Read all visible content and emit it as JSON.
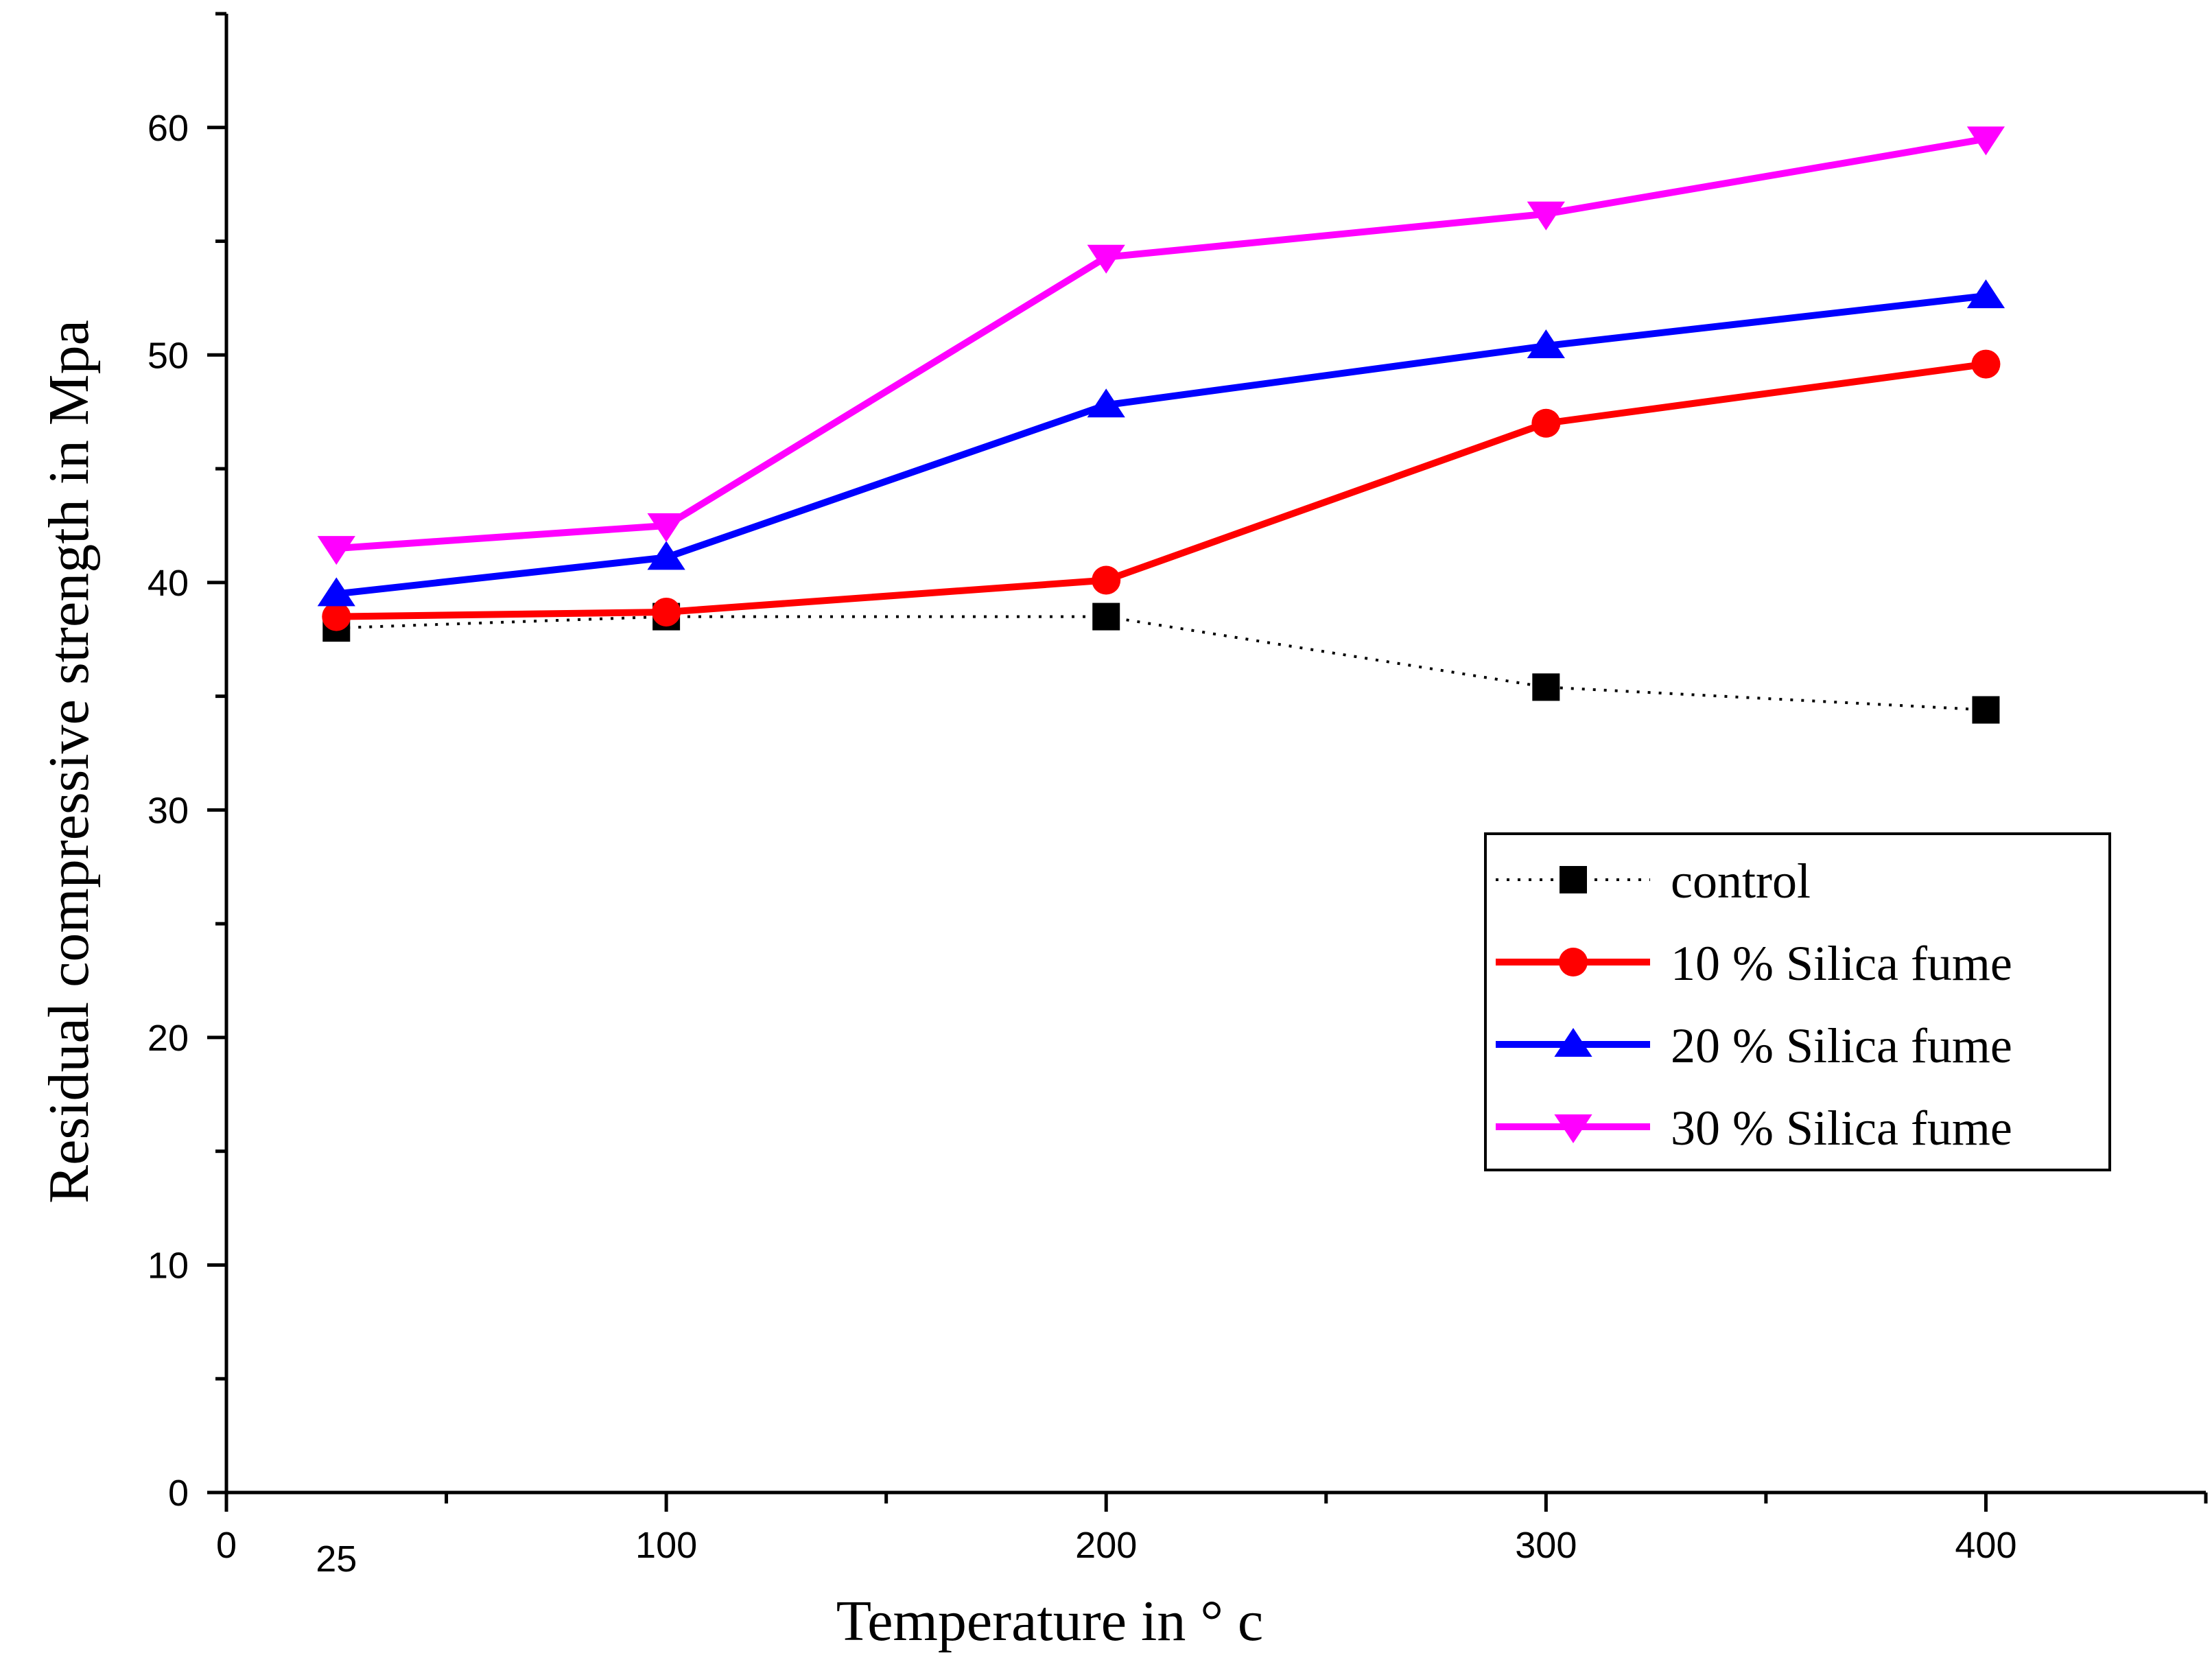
{
  "chart_data": {
    "type": "line",
    "title": "",
    "xlabel": "Temperature in ° c",
    "ylabel": "Residual compressive strength  in Mpa",
    "xlim": [
      0,
      450
    ],
    "ylim": [
      0,
      65
    ],
    "x_ticks": [
      0,
      100,
      200,
      300,
      400
    ],
    "x_extra_ticks": [
      25
    ],
    "x_minor_ticks": [
      50,
      150,
      250,
      350,
      450
    ],
    "y_ticks": [
      0,
      10,
      20,
      30,
      40,
      50,
      60
    ],
    "y_minor_ticks": [
      5,
      15,
      25,
      35,
      45,
      55,
      65
    ],
    "x": [
      25,
      100,
      200,
      300,
      400
    ],
    "series": [
      {
        "name": "control",
        "values": [
          38.0,
          38.5,
          38.5,
          35.4,
          34.4
        ],
        "color": "#000000",
        "marker": "square",
        "line_style": "dotted"
      },
      {
        "name": "10 % Silica fume",
        "values": [
          38.5,
          38.7,
          40.1,
          47.0,
          49.6
        ],
        "color": "#ff0000",
        "marker": "circle",
        "line_style": "solid"
      },
      {
        "name": "20 % Silica fume",
        "values": [
          39.5,
          41.1,
          47.8,
          50.4,
          52.6
        ],
        "color": "#0000ff",
        "marker": "triangle-up",
        "line_style": "solid"
      },
      {
        "name": "30 % Silica fume",
        "values": [
          41.5,
          42.5,
          54.3,
          56.2,
          59.5
        ],
        "color": "#ff00ff",
        "marker": "triangle-down",
        "line_style": "solid"
      }
    ],
    "legend": {
      "position": "right, lower-middle",
      "border": true
    },
    "grid": false
  }
}
